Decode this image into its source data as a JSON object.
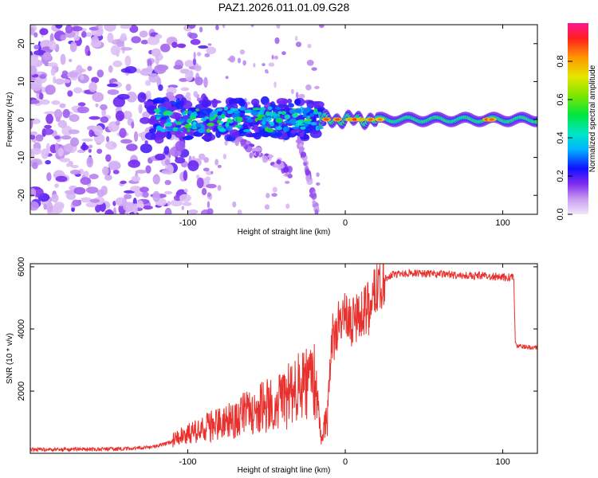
{
  "title": "PAZ1.2026.011.01.09.G28",
  "colors": {
    "snr_line": "#e8302c",
    "frame": "#000000"
  },
  "chart_data": [
    {
      "type": "heatmap",
      "title": "PAZ1.2026.011.01.09.G28",
      "xlabel": "Height of straight line (km)",
      "ylabel": "Frequency (Hz)",
      "xlim": [
        -200,
        122
      ],
      "ylim": [
        -25,
        25
      ],
      "xticks": [
        -100,
        0,
        100
      ],
      "xtick_labels": [
        "-100",
        "0",
        "100"
      ],
      "yticks": [
        -20,
        -10,
        0,
        10,
        20
      ],
      "ytick_labels": [
        "-20",
        "-10",
        "0",
        "10",
        "20"
      ],
      "colorbar": {
        "label": "Normalized spectral amplitude",
        "range": [
          0,
          1
        ],
        "ticks": [
          0,
          0.2,
          0.4,
          0.6,
          0.8
        ],
        "tick_labels": [
          "0.0",
          "0.2",
          "0.4",
          "0.6",
          "0.8"
        ]
      },
      "description_regions": [
        {
          "x_range": [
            -200,
            -110
          ],
          "freq_range": [
            -25,
            25
          ],
          "amplitude": "low (0.05-0.2), scattered"
        },
        {
          "x_range": [
            -125,
            -15
          ],
          "freq_range": [
            -5,
            5
          ],
          "amplitude": "medium (0.2-0.55)"
        },
        {
          "x_range": [
            -15,
            122
          ],
          "freq_range": [
            -1.5,
            1.5
          ],
          "amplitude": "high (0.4-0.95)"
        }
      ]
    },
    {
      "type": "line",
      "xlabel": "Height of straight line (km)",
      "ylabel": "SNR (10 * v/v)",
      "xlim": [
        -200,
        122
      ],
      "ylim": [
        0,
        6100
      ],
      "xticks": [
        -100,
        0,
        100
      ],
      "xtick_labels": [
        "-100",
        "0",
        "100"
      ],
      "yticks": [
        2000,
        4000,
        6000
      ],
      "ytick_labels": [
        "2000",
        "4000",
        "6000"
      ],
      "series": [
        {
          "name": "SNR",
          "x": [
            -200,
            -170,
            -140,
            -120,
            -100,
            -80,
            -60,
            -40,
            -30,
            -20,
            -15,
            -12,
            -8,
            -5,
            0,
            5,
            10,
            15,
            20,
            25,
            30,
            40,
            50,
            60,
            70,
            80,
            90,
            100,
            107,
            108,
            110,
            115,
            122
          ],
          "values": [
            100,
            100,
            120,
            200,
            500,
            800,
            1100,
            1400,
            1700,
            2000,
            300,
            900,
            3600,
            4200,
            4400,
            4200,
            4300,
            4700,
            5300,
            5600,
            5750,
            5800,
            5780,
            5760,
            5740,
            5720,
            5700,
            5680,
            5650,
            3500,
            3450,
            3420,
            3400
          ]
        }
      ]
    }
  ]
}
